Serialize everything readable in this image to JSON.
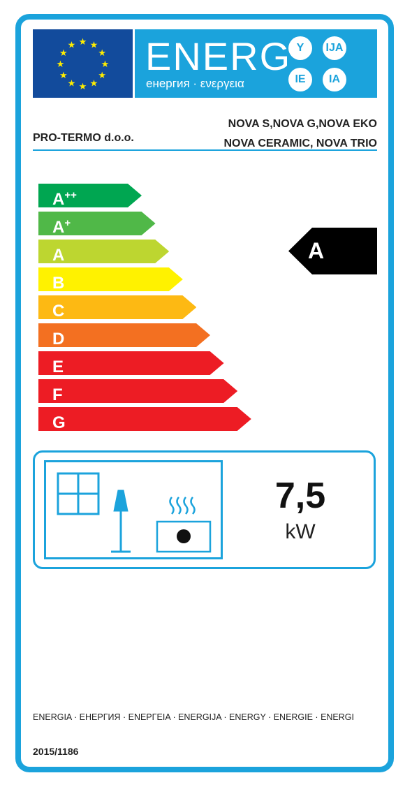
{
  "header": {
    "energy_word": "ENERG",
    "energy_sub": "енергия · ενεργεια",
    "suffixes": [
      "Y",
      "IJA",
      "IE",
      "IA"
    ]
  },
  "supplier": "PRO-TERMO d.o.o.",
  "models": [
    "NOVA S,NOVA G,NOVA EKO",
    "NOVA CERAMIC, NOVA TRIO"
  ],
  "scale": [
    {
      "label": "A",
      "sup": "++",
      "color": "#00a651"
    },
    {
      "label": "A",
      "sup": "+",
      "color": "#50b848"
    },
    {
      "label": "A",
      "sup": "",
      "color": "#bdd630"
    },
    {
      "label": "B",
      "sup": "",
      "color": "#fff200"
    },
    {
      "label": "C",
      "sup": "",
      "color": "#fdb913"
    },
    {
      "label": "D",
      "sup": "",
      "color": "#f37021"
    },
    {
      "label": "E",
      "sup": "",
      "color": "#ed1c24"
    },
    {
      "label": "F",
      "sup": "",
      "color": "#ed1c24"
    },
    {
      "label": "G",
      "sup": "",
      "color": "#ed1c24"
    }
  ],
  "rating": "A",
  "rated_output": {
    "value": "7,5",
    "unit": "kW"
  },
  "footer_languages": "ENERGIA · ЕНЕРГИЯ · ΕΝΕΡΓΕΙΑ · ENERGIJA · ENERGY · ENERGIE · ENERGI",
  "regulation": "2015/1186",
  "accent_color": "#1ba3dc"
}
